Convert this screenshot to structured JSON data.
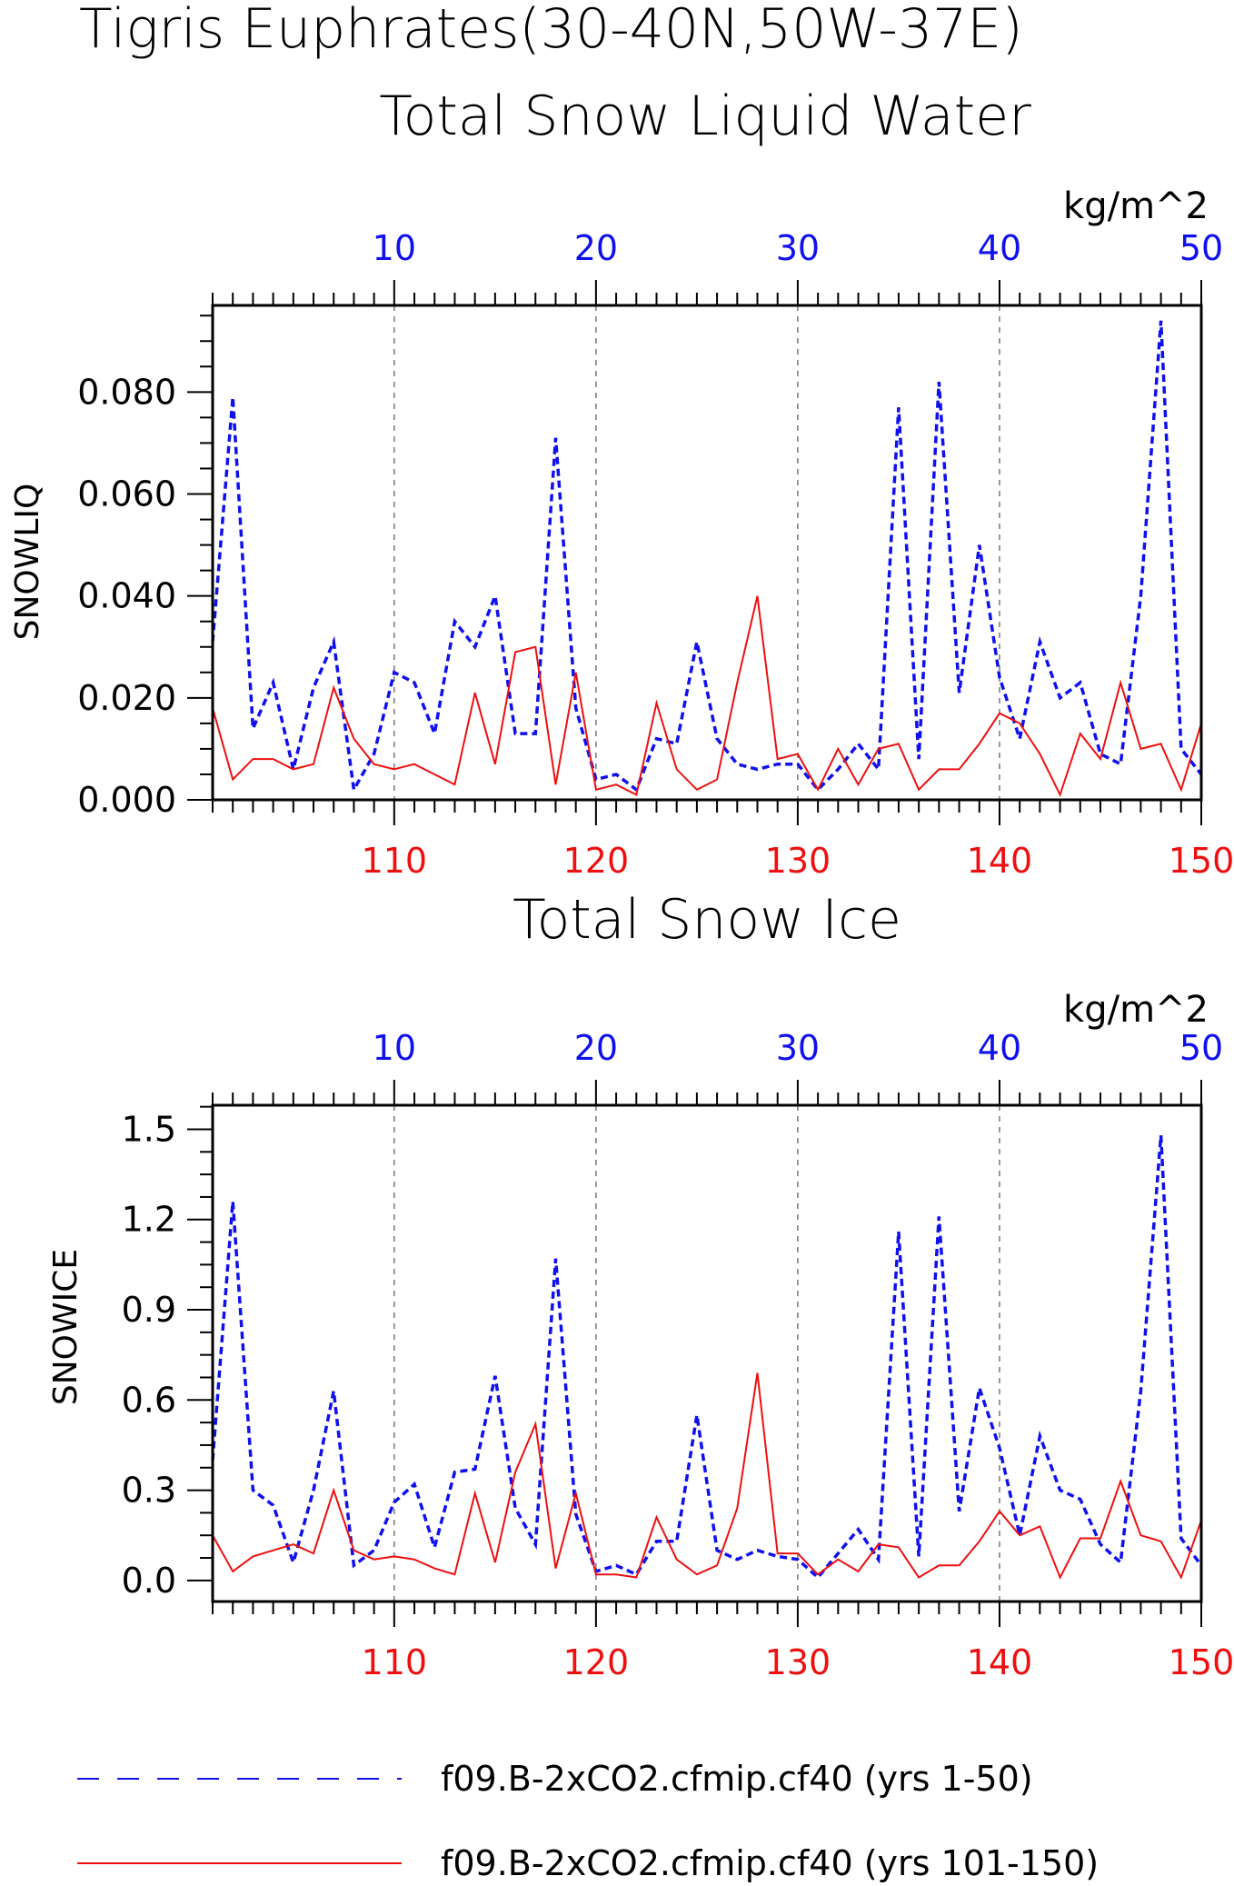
{
  "page_title": "Tigris Euphrates(30-40N,50W-37E)",
  "colors": {
    "series_top_axis": "#1010ee",
    "series_bottom_axis": "#ee1010",
    "axis": "#000000",
    "grid": "#555555"
  },
  "legend": {
    "items": [
      {
        "label": "f09.B-2xCO2.cfmip.cf40 (yrs 1-50)",
        "style": "dashed",
        "color": "#1010ee"
      },
      {
        "label": "f09.B-2xCO2.cfmip.cf40 (yrs 101-150)",
        "style": "solid",
        "color": "#ee1010"
      }
    ]
  },
  "chart_data": [
    {
      "type": "line",
      "title": "Total Snow Liquid Water",
      "units": "kg/m^2",
      "ylabel": "SNOWLIQ",
      "ylim": [
        0,
        0.097
      ],
      "yticks": [
        0.0,
        0.02,
        0.04,
        0.06,
        0.08
      ],
      "ytick_labels": [
        "0.000",
        "0.020",
        "0.040",
        "0.060",
        "0.080"
      ],
      "x_top": {
        "range": [
          1,
          50
        ],
        "ticks": [
          10,
          20,
          30,
          40,
          50
        ],
        "tick_labels": [
          "10",
          "20",
          "30",
          "40",
          "50"
        ]
      },
      "x_bottom": {
        "range": [
          101,
          150
        ],
        "ticks": [
          110,
          120,
          130,
          140,
          150
        ],
        "tick_labels": [
          "110",
          "120",
          "130",
          "140",
          "150"
        ]
      },
      "grid_x": [
        10,
        20,
        30,
        40
      ],
      "series": [
        {
          "axis": "top",
          "style": "dashed",
          "color": "#1010ee",
          "x": [
            1,
            2,
            3,
            4,
            5,
            6,
            7,
            8,
            9,
            10,
            11,
            12,
            13,
            14,
            15,
            16,
            17,
            18,
            19,
            20,
            21,
            22,
            23,
            24,
            25,
            26,
            27,
            28,
            29,
            30,
            31,
            32,
            33,
            34,
            35,
            36,
            37,
            38,
            39,
            40,
            41,
            42,
            43,
            44,
            45,
            46,
            47,
            48,
            49,
            50
          ],
          "values": [
            0.031,
            0.079,
            0.014,
            0.023,
            0.006,
            0.022,
            0.031,
            0.002,
            0.009,
            0.025,
            0.023,
            0.013,
            0.035,
            0.03,
            0.04,
            0.013,
            0.013,
            0.071,
            0.018,
            0.004,
            0.005,
            0.002,
            0.012,
            0.011,
            0.031,
            0.012,
            0.007,
            0.006,
            0.007,
            0.007,
            0.002,
            0.006,
            0.011,
            0.006,
            0.077,
            0.008,
            0.082,
            0.021,
            0.05,
            0.024,
            0.012,
            0.031,
            0.02,
            0.023,
            0.009,
            0.007,
            0.04,
            0.094,
            0.01,
            0.005
          ]
        },
        {
          "axis": "bottom",
          "style": "solid",
          "color": "#ee1010",
          "x": [
            101,
            102,
            103,
            104,
            105,
            106,
            107,
            108,
            109,
            110,
            111,
            112,
            113,
            114,
            115,
            116,
            117,
            118,
            119,
            120,
            121,
            122,
            123,
            124,
            125,
            126,
            127,
            128,
            129,
            130,
            131,
            132,
            133,
            134,
            135,
            136,
            137,
            138,
            139,
            140,
            141,
            142,
            143,
            144,
            145,
            146,
            147,
            148,
            149,
            150
          ],
          "values": [
            0.018,
            0.004,
            0.008,
            0.008,
            0.006,
            0.007,
            0.022,
            0.012,
            0.007,
            0.006,
            0.007,
            0.005,
            0.003,
            0.021,
            0.007,
            0.029,
            0.03,
            0.003,
            0.025,
            0.002,
            0.003,
            0.001,
            0.019,
            0.006,
            0.002,
            0.004,
            0.023,
            0.04,
            0.008,
            0.009,
            0.002,
            0.01,
            0.003,
            0.01,
            0.011,
            0.002,
            0.006,
            0.006,
            0.011,
            0.017,
            0.015,
            0.009,
            0.001,
            0.013,
            0.008,
            0.023,
            0.01,
            0.011,
            0.002,
            0.015
          ]
        }
      ]
    },
    {
      "type": "line",
      "title": "Total Snow Ice",
      "units": "kg/m^2",
      "ylabel": "SNOWICE",
      "ylim": [
        -0.07,
        1.58
      ],
      "yticks": [
        0.0,
        0.3,
        0.6,
        0.9,
        1.2,
        1.5
      ],
      "ytick_labels": [
        "0.0",
        "0.3",
        "0.6",
        "0.9",
        "1.2",
        "1.5"
      ],
      "x_top": {
        "range": [
          1,
          50
        ],
        "ticks": [
          10,
          20,
          30,
          40,
          50
        ],
        "tick_labels": [
          "10",
          "20",
          "30",
          "40",
          "50"
        ]
      },
      "x_bottom": {
        "range": [
          101,
          150
        ],
        "ticks": [
          110,
          120,
          130,
          140,
          150
        ],
        "tick_labels": [
          "110",
          "120",
          "130",
          "140",
          "150"
        ]
      },
      "grid_x": [
        10,
        20,
        30,
        40
      ],
      "series": [
        {
          "axis": "top",
          "style": "dashed",
          "color": "#1010ee",
          "x": [
            1,
            2,
            3,
            4,
            5,
            6,
            7,
            8,
            9,
            10,
            11,
            12,
            13,
            14,
            15,
            16,
            17,
            18,
            19,
            20,
            21,
            22,
            23,
            24,
            25,
            26,
            27,
            28,
            29,
            30,
            31,
            32,
            33,
            34,
            35,
            36,
            37,
            38,
            39,
            40,
            41,
            42,
            43,
            44,
            45,
            46,
            47,
            48,
            49,
            50
          ],
          "values": [
            0.4,
            1.26,
            0.3,
            0.25,
            0.06,
            0.3,
            0.63,
            0.05,
            0.1,
            0.26,
            0.32,
            0.11,
            0.36,
            0.37,
            0.68,
            0.24,
            0.12,
            1.07,
            0.22,
            0.03,
            0.05,
            0.02,
            0.13,
            0.13,
            0.55,
            0.1,
            0.07,
            0.1,
            0.08,
            0.07,
            0.01,
            0.09,
            0.17,
            0.07,
            1.16,
            0.08,
            1.21,
            0.23,
            0.64,
            0.44,
            0.15,
            0.48,
            0.3,
            0.27,
            0.12,
            0.06,
            0.63,
            1.48,
            0.14,
            0.05
          ]
        },
        {
          "axis": "bottom",
          "style": "solid",
          "color": "#ee1010",
          "x": [
            101,
            102,
            103,
            104,
            105,
            106,
            107,
            108,
            109,
            110,
            111,
            112,
            113,
            114,
            115,
            116,
            117,
            118,
            119,
            120,
            121,
            122,
            123,
            124,
            125,
            126,
            127,
            128,
            129,
            130,
            131,
            132,
            133,
            134,
            135,
            136,
            137,
            138,
            139,
            140,
            141,
            142,
            143,
            144,
            145,
            146,
            147,
            148,
            149,
            150
          ],
          "values": [
            0.15,
            0.03,
            0.08,
            0.1,
            0.12,
            0.09,
            0.3,
            0.1,
            0.07,
            0.08,
            0.07,
            0.04,
            0.02,
            0.29,
            0.06,
            0.36,
            0.52,
            0.04,
            0.29,
            0.02,
            0.02,
            0.01,
            0.21,
            0.07,
            0.02,
            0.05,
            0.24,
            0.69,
            0.09,
            0.09,
            0.02,
            0.07,
            0.03,
            0.12,
            0.11,
            0.01,
            0.05,
            0.05,
            0.13,
            0.23,
            0.15,
            0.18,
            0.01,
            0.14,
            0.14,
            0.33,
            0.15,
            0.13,
            0.01,
            0.2
          ]
        }
      ]
    }
  ]
}
